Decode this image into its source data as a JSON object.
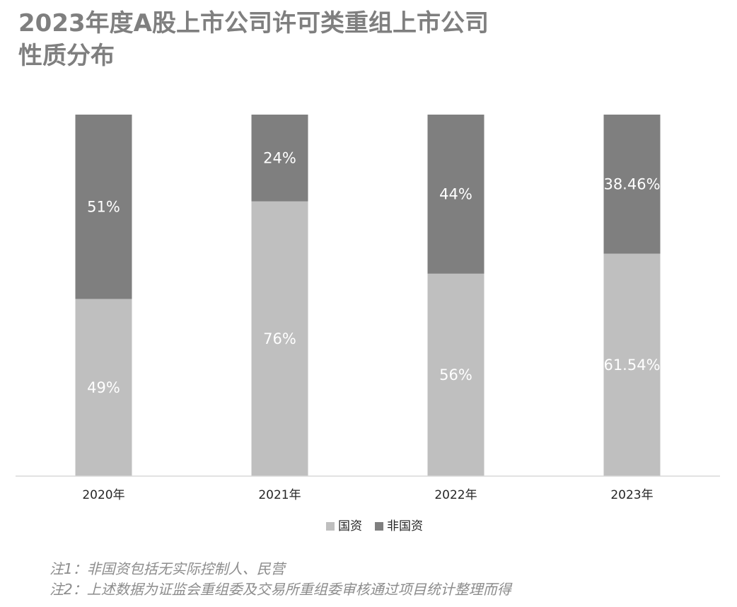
{
  "title_lines": [
    "2023年度A股上市公司许可类重组上市公司",
    "性质分布"
  ],
  "chart_data": {
    "type": "bar",
    "stacked": true,
    "percent": true,
    "categories": [
      "2020年",
      "2021年",
      "2022年",
      "2023年"
    ],
    "series": [
      {
        "name": "国资",
        "values": [
          49,
          76,
          56,
          61.54
        ],
        "labels": [
          "49%",
          "76%",
          "56%",
          "61.54%"
        ],
        "color": "#bfbfbf"
      },
      {
        "name": "非国资",
        "values": [
          51,
          24,
          44,
          38.46
        ],
        "labels": [
          "51%",
          "24%",
          "44%",
          "38.46%"
        ],
        "color": "#7f7f7f"
      }
    ],
    "ylim": [
      0,
      100
    ],
    "legend_position": "bottom",
    "grid": false
  },
  "notes": [
    "注1：非国资包括无实际控制人、民营",
    "注2：上述数据为证监会重组委及交易所重组委审核通过项目统计整理而得"
  ]
}
